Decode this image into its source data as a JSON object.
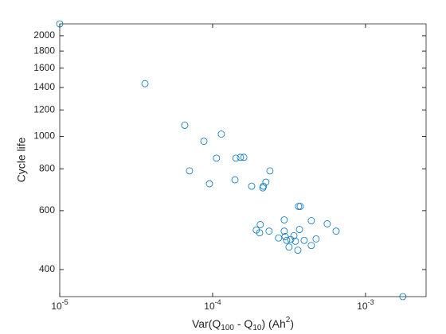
{
  "chart_data": {
    "type": "scatter",
    "log_x": true,
    "log_y": true,
    "grid": false,
    "color": "#0072bd",
    "x_label": [
      {
        "text": "Var(Q"
      },
      {
        "sub": "100"
      },
      {
        "text": "  -  Q"
      },
      {
        "sub": "10"
      },
      {
        "text": ")  (Ah"
      },
      {
        "sup": "2"
      },
      {
        "text": ")"
      }
    ],
    "y_label": "Cycle life",
    "xlim": [
      1e-05,
      0.00249
    ],
    "ylim": [
      332,
      2170
    ],
    "xticks": [
      {
        "value": 1e-05,
        "label": "10",
        "exponent": "-5"
      },
      {
        "value": 0.0001,
        "label": "10",
        "exponent": "-4"
      },
      {
        "value": 0.001,
        "label": "10",
        "exponent": "-3"
      }
    ],
    "yticks": [
      400,
      600,
      800,
      1000,
      1200,
      1400,
      1600,
      1800,
      2000
    ],
    "x": [
      1e-05,
      3.61e-05,
      6.57e-05,
      7.06e-05,
      8.77e-05,
      9.53e-05,
      0.000106,
      0.000114,
      0.00014,
      0.000142,
      0.000152,
      0.00016,
      0.00018,
      0.000213,
      0.000215,
      0.000223,
      0.000237,
      0.000234,
      0.000193,
      0.000203,
      0.000205,
      0.00027,
      0.000294,
      0.000294,
      0.000298,
      0.000305,
      0.000316,
      0.000324,
      0.00034,
      0.000348,
      0.000361,
      0.000365,
      0.000374,
      0.00037,
      0.000397,
      0.000442,
      0.000442,
      0.000475,
      0.000562,
      0.000642,
      0.001755
    ],
    "values": [
      2170,
      1438,
      1080,
      789,
      967,
      722,
      861,
      1016,
      742,
      861,
      866,
      866,
      710,
      702,
      710,
      730,
      789,
      521,
      525,
      515,
      545,
      497,
      563,
      521,
      502,
      489,
      467,
      492,
      505,
      486,
      457,
      618,
      618,
      527,
      489,
      560,
      472,
      494,
      548,
      521,
      332
    ]
  }
}
